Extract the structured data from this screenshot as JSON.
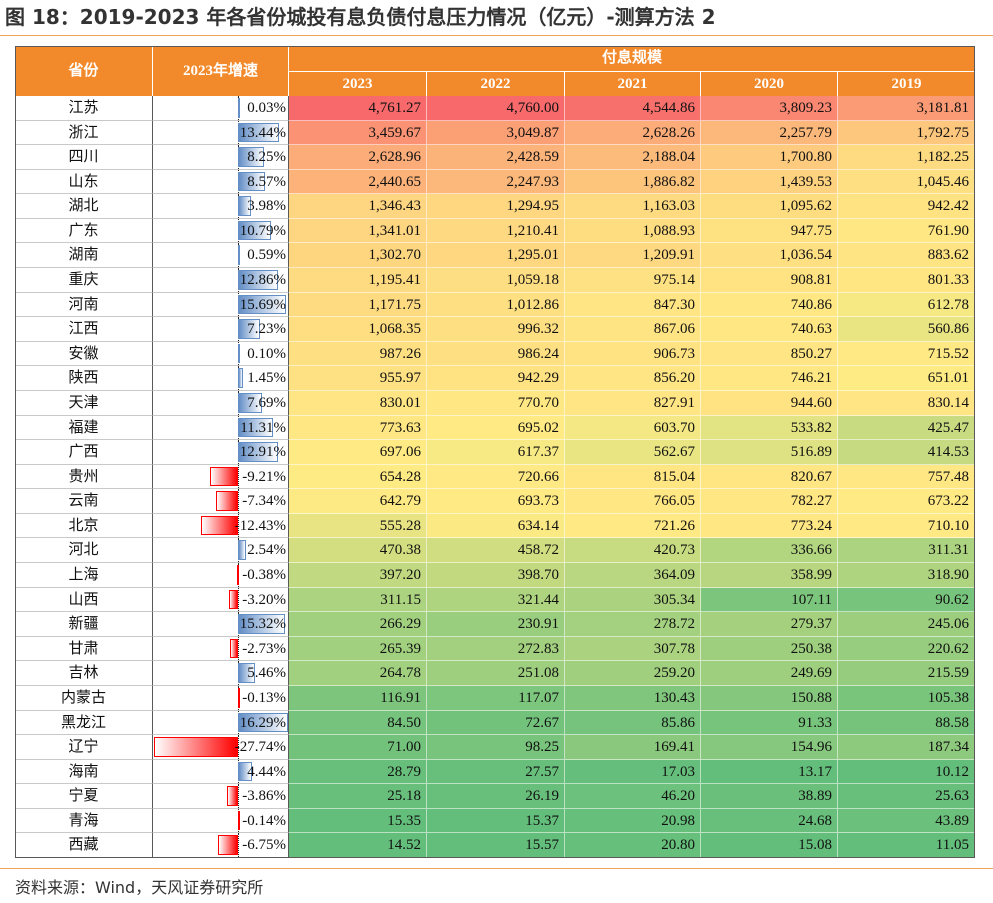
{
  "figure": {
    "source": "资料来源：Wind，天风证券研究所"
  },
  "colors": {
    "header_bg": "#F28A2B",
    "header_text": "#FFFFFF",
    "rule": "#F0A25C",
    "scale_min": "#63BE7B",
    "scale_mid": "#FFEB84",
    "scale_max": "#F8696B",
    "bar_positive": "#638EC6",
    "bar_negative": "#FF0000"
  },
  "chart_data": {
    "type": "table",
    "title": "图 18：2019-2023 年各省份城投有息负债付息压力情况（亿元）-测算方法 2",
    "header": {
      "province": "省份",
      "growth": "2023年增速",
      "group": "付息规模",
      "years": [
        "2023",
        "2022",
        "2021",
        "2020",
        "2019"
      ]
    },
    "rows": [
      {
        "province": "江苏",
        "growth": "0.03%",
        "values": [
          "4,761.27",
          "4,760.00",
          "4,544.86",
          "3,809.23",
          "3,181.81"
        ]
      },
      {
        "province": "浙江",
        "growth": "13.44%",
        "values": [
          "3,459.67",
          "3,049.87",
          "2,628.26",
          "2,257.79",
          "1,792.75"
        ]
      },
      {
        "province": "四川",
        "growth": "8.25%",
        "values": [
          "2,628.96",
          "2,428.59",
          "2,188.04",
          "1,700.80",
          "1,182.25"
        ]
      },
      {
        "province": "山东",
        "growth": "8.57%",
        "values": [
          "2,440.65",
          "2,247.93",
          "1,886.82",
          "1,439.53",
          "1,045.46"
        ]
      },
      {
        "province": "湖北",
        "growth": "3.98%",
        "values": [
          "1,346.43",
          "1,294.95",
          "1,163.03",
          "1,095.62",
          "942.42"
        ]
      },
      {
        "province": "广东",
        "growth": "10.79%",
        "values": [
          "1,341.01",
          "1,210.41",
          "1,088.93",
          "947.75",
          "761.90"
        ]
      },
      {
        "province": "湖南",
        "growth": "0.59%",
        "values": [
          "1,302.70",
          "1,295.01",
          "1,209.91",
          "1,036.54",
          "883.62"
        ]
      },
      {
        "province": "重庆",
        "growth": "12.86%",
        "values": [
          "1,195.41",
          "1,059.18",
          "975.14",
          "908.81",
          "801.33"
        ]
      },
      {
        "province": "河南",
        "growth": "15.69%",
        "values": [
          "1,171.75",
          "1,012.86",
          "847.30",
          "740.86",
          "612.78"
        ]
      },
      {
        "province": "江西",
        "growth": "7.23%",
        "values": [
          "1,068.35",
          "996.32",
          "867.06",
          "740.63",
          "560.86"
        ]
      },
      {
        "province": "安徽",
        "growth": "0.10%",
        "values": [
          "987.26",
          "986.24",
          "906.73",
          "850.27",
          "715.52"
        ]
      },
      {
        "province": "陕西",
        "growth": "1.45%",
        "values": [
          "955.97",
          "942.29",
          "856.20",
          "746.21",
          "651.01"
        ]
      },
      {
        "province": "天津",
        "growth": "7.69%",
        "values": [
          "830.01",
          "770.70",
          "827.91",
          "944.60",
          "830.14"
        ]
      },
      {
        "province": "福建",
        "growth": "11.31%",
        "values": [
          "773.63",
          "695.02",
          "603.70",
          "533.82",
          "425.47"
        ]
      },
      {
        "province": "广西",
        "growth": "12.91%",
        "values": [
          "697.06",
          "617.37",
          "562.67",
          "516.89",
          "414.53"
        ]
      },
      {
        "province": "贵州",
        "growth": "-9.21%",
        "values": [
          "654.28",
          "720.66",
          "815.04",
          "820.67",
          "757.48"
        ]
      },
      {
        "province": "云南",
        "growth": "-7.34%",
        "values": [
          "642.79",
          "693.73",
          "766.05",
          "782.27",
          "673.22"
        ]
      },
      {
        "province": "北京",
        "growth": "-12.43%",
        "values": [
          "555.28",
          "634.14",
          "721.26",
          "773.24",
          "710.10"
        ]
      },
      {
        "province": "河北",
        "growth": "2.54%",
        "values": [
          "470.38",
          "458.72",
          "420.73",
          "336.66",
          "311.31"
        ]
      },
      {
        "province": "上海",
        "growth": "-0.38%",
        "values": [
          "397.20",
          "398.70",
          "364.09",
          "358.99",
          "318.90"
        ]
      },
      {
        "province": "山西",
        "growth": "-3.20%",
        "values": [
          "311.15",
          "321.44",
          "305.34",
          "107.11",
          "90.62"
        ]
      },
      {
        "province": "新疆",
        "growth": "15.32%",
        "values": [
          "266.29",
          "230.91",
          "278.72",
          "279.37",
          "245.06"
        ]
      },
      {
        "province": "甘肃",
        "growth": "-2.73%",
        "values": [
          "265.39",
          "272.83",
          "307.78",
          "250.38",
          "220.62"
        ]
      },
      {
        "province": "吉林",
        "growth": "5.46%",
        "values": [
          "264.78",
          "251.08",
          "259.20",
          "249.69",
          "215.59"
        ]
      },
      {
        "province": "内蒙古",
        "growth": "-0.13%",
        "values": [
          "116.91",
          "117.07",
          "130.43",
          "150.88",
          "105.38"
        ]
      },
      {
        "province": "黑龙江",
        "growth": "16.29%",
        "values": [
          "84.50",
          "72.67",
          "85.86",
          "91.33",
          "88.58"
        ]
      },
      {
        "province": "辽宁",
        "growth": "-27.74%",
        "values": [
          "71.00",
          "98.25",
          "169.41",
          "154.96",
          "187.34"
        ]
      },
      {
        "province": "海南",
        "growth": "4.44%",
        "values": [
          "28.79",
          "27.57",
          "17.03",
          "13.17",
          "10.12"
        ]
      },
      {
        "province": "宁夏",
        "growth": "-3.86%",
        "values": [
          "25.18",
          "26.19",
          "46.20",
          "38.89",
          "25.63"
        ]
      },
      {
        "province": "青海",
        "growth": "-0.14%",
        "values": [
          "15.35",
          "15.37",
          "20.98",
          "24.68",
          "43.89"
        ]
      },
      {
        "province": "西藏",
        "growth": "-6.75%",
        "values": [
          "14.52",
          "15.57",
          "20.80",
          "15.08",
          "11.05"
        ]
      }
    ]
  }
}
